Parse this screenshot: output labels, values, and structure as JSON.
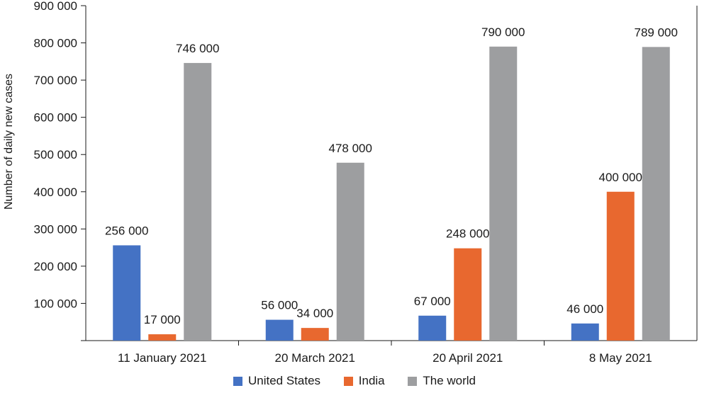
{
  "chart_data": {
    "type": "bar",
    "title": "",
    "xlabel": "",
    "ylabel": "Number of daily new cases",
    "ylim": [
      0,
      900000
    ],
    "yticks": [
      "",
      "100 000",
      "200 000",
      "300 000",
      "400 000",
      "500 000",
      "600 000",
      "700 000",
      "800 000",
      "900 000"
    ],
    "categories": [
      "11 January 2021",
      "20 March 2021",
      "20 April 2021",
      "8 May 2021"
    ],
    "series": [
      {
        "name": "United States",
        "color": "#4472c4",
        "values": [
          256000,
          56000,
          67000,
          46000
        ],
        "labels": [
          "256 000",
          "56 000",
          "67 000",
          "46 000"
        ]
      },
      {
        "name": "India",
        "color": "#e8682f",
        "values": [
          17000,
          34000,
          248000,
          400000
        ],
        "labels": [
          "17 000",
          "34 000",
          "248 000",
          "400 000"
        ]
      },
      {
        "name": "The world",
        "color": "#9d9ea0",
        "values": [
          746000,
          478000,
          790000,
          789000
        ],
        "labels": [
          "746 000",
          "478 000",
          "790 000",
          "789 000"
        ]
      }
    ],
    "grid": false,
    "legend_position": "bottom"
  }
}
